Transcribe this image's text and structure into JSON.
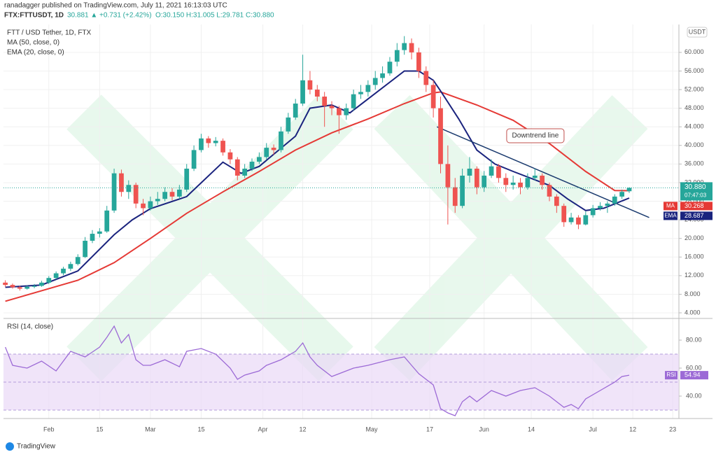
{
  "header": {
    "publisher": "ranadagger published on TradingView.com, July 11, 2021 16:13:03 UTC",
    "symbol": "FTX:FTTUSDT, 1D",
    "change": "30.881 ▲ +0.731 (+2.42%)",
    "ohlc": "O:30.150 H:31.005 L:29.781 C:30.880"
  },
  "legend": [
    "FTT / USD Tether, 1D, FTX",
    "MA (50, close, 0)",
    "EMA (20, close, 0)"
  ],
  "currency": "USDT",
  "footer": "TradingView",
  "chart_data": {
    "type": "candlestick",
    "xlim": [
      19.5,
      205.7
    ],
    "xticks": [
      {
        "value": 32,
        "label": "Feb"
      },
      {
        "value": 46,
        "label": "15"
      },
      {
        "value": 60,
        "label": "Mar"
      },
      {
        "value": 74,
        "label": "15"
      },
      {
        "value": 91,
        "label": "Apr"
      },
      {
        "value": 102,
        "label": "12"
      },
      {
        "value": 121,
        "label": "May"
      },
      {
        "value": 137,
        "label": "17"
      },
      {
        "value": 152,
        "label": "Jun"
      },
      {
        "value": 165,
        "label": "14"
      },
      {
        "value": 182,
        "label": "Jul"
      },
      {
        "value": 193,
        "label": "12"
      },
      {
        "value": 204,
        "label": "23"
      }
    ],
    "ylim": [
      2.8,
      66
    ],
    "yticks": [
      {
        "value": 4,
        "label": "4.000"
      },
      {
        "value": 8,
        "label": "8.000"
      },
      {
        "value": 12,
        "label": "12.000"
      },
      {
        "value": 16,
        "label": "16.000"
      },
      {
        "value": 20,
        "label": "20.000"
      },
      {
        "value": 24,
        "label": "24.000"
      },
      {
        "value": 28,
        "label": "28.000"
      },
      {
        "value": 32,
        "label": "32.000"
      },
      {
        "value": 36,
        "label": "36.000"
      },
      {
        "value": 40,
        "label": "40.000"
      },
      {
        "value": 44,
        "label": "44.000"
      },
      {
        "value": 48,
        "label": "48.000"
      },
      {
        "value": 52,
        "label": "52.000"
      },
      {
        "value": 56,
        "label": "56.000"
      },
      {
        "value": 60,
        "label": "60.000"
      }
    ],
    "grid": true,
    "up_color": "#26a69a",
    "down_color": "#ef5350",
    "x": [
      20,
      22,
      24,
      26,
      28,
      30,
      32,
      34,
      36,
      38,
      40,
      42,
      44,
      46,
      48,
      50,
      52,
      54,
      56,
      58,
      60,
      62,
      64,
      66,
      68,
      70,
      72,
      74,
      76,
      78,
      80,
      82,
      84,
      86,
      88,
      90,
      92,
      94,
      96,
      98,
      100,
      102,
      104,
      106,
      108,
      110,
      112,
      114,
      116,
      118,
      120,
      122,
      124,
      126,
      128,
      130,
      132,
      134,
      136,
      138,
      140,
      142,
      144,
      146,
      148,
      150,
      152,
      154,
      156,
      158,
      160,
      162,
      164,
      166,
      168,
      170,
      172,
      174,
      176,
      178,
      180,
      182,
      184,
      186,
      188,
      190,
      192
    ],
    "candles": [
      [
        10.5,
        11.0,
        9.6,
        10.0
      ],
      [
        10.0,
        10.3,
        9.2,
        9.5
      ],
      [
        9.5,
        9.8,
        8.8,
        9.2
      ],
      [
        9.2,
        9.9,
        9.0,
        9.6
      ],
      [
        9.6,
        10.2,
        9.3,
        9.8
      ],
      [
        9.8,
        10.9,
        9.6,
        10.5
      ],
      [
        10.5,
        11.9,
        10.2,
        11.5
      ],
      [
        11.5,
        12.9,
        11.2,
        12.5
      ],
      [
        12.5,
        13.9,
        12.1,
        13.5
      ],
      [
        13.5,
        15.0,
        13.0,
        14.5
      ],
      [
        14.5,
        16.6,
        14.2,
        16.0
      ],
      [
        16.0,
        20.3,
        15.8,
        19.5
      ],
      [
        19.5,
        21.8,
        19.0,
        21.0
      ],
      [
        21.0,
        22.2,
        20.2,
        21.5
      ],
      [
        21.5,
        27.0,
        21.2,
        26.0
      ],
      [
        26.0,
        35.0,
        25.5,
        34.0
      ],
      [
        34.0,
        34.8,
        29.0,
        30.0
      ],
      [
        30.0,
        32.5,
        28.5,
        31.5
      ],
      [
        31.5,
        32.0,
        26.5,
        27.5
      ],
      [
        27.5,
        28.5,
        25.0,
        26.5
      ],
      [
        26.5,
        29.0,
        26.0,
        28.0
      ],
      [
        28.0,
        30.0,
        27.2,
        28.5
      ],
      [
        28.5,
        31.0,
        28.0,
        30.0
      ],
      [
        30.0,
        30.8,
        28.2,
        29.0
      ],
      [
        29.0,
        31.5,
        28.5,
        30.5
      ],
      [
        30.5,
        36.0,
        30.0,
        35.0
      ],
      [
        35.0,
        40.0,
        34.5,
        39.0
      ],
      [
        39.0,
        42.5,
        38.5,
        41.5
      ],
      [
        41.5,
        42.0,
        39.5,
        40.5
      ],
      [
        40.5,
        41.8,
        39.8,
        41.0
      ],
      [
        41.0,
        41.5,
        37.8,
        38.5
      ],
      [
        38.5,
        39.2,
        36.0,
        37.0
      ],
      [
        37.0,
        37.5,
        32.5,
        33.5
      ],
      [
        33.5,
        36.0,
        33.0,
        35.0
      ],
      [
        35.0,
        37.2,
        34.5,
        36.5
      ],
      [
        36.5,
        38.5,
        36.0,
        37.5
      ],
      [
        37.5,
        40.5,
        37.0,
        39.5
      ],
      [
        39.5,
        40.2,
        38.0,
        39.0
      ],
      [
        39.0,
        44.0,
        38.5,
        43.0
      ],
      [
        43.0,
        47.0,
        42.5,
        46.0
      ],
      [
        46.0,
        50.0,
        45.5,
        49.0
      ],
      [
        49.0,
        59.5,
        48.5,
        54.0
      ],
      [
        54.0,
        56.0,
        51.0,
        52.0
      ],
      [
        52.0,
        53.0,
        49.5,
        50.5
      ],
      [
        50.5,
        51.5,
        44.0,
        48.5
      ],
      [
        48.5,
        49.5,
        46.5,
        48.0
      ],
      [
        48.0,
        48.5,
        42.5,
        46.5
      ],
      [
        46.5,
        49.0,
        45.5,
        48.0
      ],
      [
        48.0,
        52.0,
        47.5,
        51.0
      ],
      [
        51.0,
        53.0,
        50.0,
        51.5
      ],
      [
        51.5,
        54.0,
        50.5,
        53.0
      ],
      [
        53.0,
        56.0,
        52.0,
        54.5
      ],
      [
        54.5,
        57.0,
        53.5,
        55.5
      ],
      [
        55.5,
        59.0,
        55.0,
        58.0
      ],
      [
        58.0,
        62.0,
        57.0,
        60.5
      ],
      [
        60.5,
        63.5,
        59.5,
        62.0
      ],
      [
        62.0,
        63.0,
        58.5,
        60.0
      ],
      [
        60.0,
        61.0,
        54.5,
        56.0
      ],
      [
        56.0,
        57.0,
        51.5,
        53.0
      ],
      [
        53.0,
        54.0,
        46.0,
        48.0
      ],
      [
        48.0,
        50.5,
        34.0,
        36.0
      ],
      [
        36.0,
        40.0,
        23.0,
        31.0
      ],
      [
        31.0,
        33.0,
        25.5,
        27.0
      ],
      [
        27.0,
        35.0,
        26.5,
        33.5
      ],
      [
        33.5,
        37.5,
        32.0,
        35.0
      ],
      [
        35.0,
        35.5,
        29.5,
        31.0
      ],
      [
        31.0,
        34.5,
        30.0,
        33.5
      ],
      [
        33.5,
        37.0,
        33.0,
        35.5
      ],
      [
        35.5,
        36.0,
        32.0,
        33.0
      ],
      [
        33.0,
        34.0,
        30.0,
        31.5
      ],
      [
        31.5,
        33.5,
        30.5,
        32.0
      ],
      [
        32.0,
        33.0,
        29.5,
        31.0
      ],
      [
        31.0,
        34.0,
        30.5,
        33.0
      ],
      [
        33.0,
        35.0,
        32.5,
        33.5
      ],
      [
        33.5,
        34.0,
        30.5,
        31.5
      ],
      [
        31.5,
        32.0,
        28.0,
        29.0
      ],
      [
        29.0,
        29.5,
        25.5,
        27.0
      ],
      [
        27.0,
        27.5,
        22.5,
        23.5
      ],
      [
        23.5,
        25.5,
        23.0,
        24.5
      ],
      [
        24.5,
        25.0,
        22.0,
        23.0
      ],
      [
        23.0,
        25.8,
        22.8,
        25.0
      ],
      [
        25.0,
        27.2,
        24.5,
        26.5
      ],
      [
        26.5,
        27.8,
        26.0,
        27.0
      ],
      [
        27.0,
        28.0,
        25.5,
        27.5
      ],
      [
        27.5,
        29.5,
        27.0,
        29.0
      ],
      [
        29.0,
        30.5,
        28.5,
        30.0
      ],
      [
        30.15,
        31.005,
        29.781,
        30.88
      ]
    ],
    "last_label": "30.880",
    "countdown": "07:47:03",
    "series": [
      {
        "name": "MA",
        "color": "#e53935",
        "label": "30.268",
        "x": [
          20,
          40,
          50,
          60,
          70,
          80,
          90,
          100,
          110,
          120,
          130,
          138,
          140,
          150,
          160,
          170,
          180,
          188,
          192
        ],
        "values": [
          6.5,
          11,
          14.8,
          20,
          25.4,
          30,
          34.4,
          39,
          42.7,
          45.7,
          49,
          51.3,
          51.5,
          48.7,
          45.4,
          40.4,
          34.4,
          30.3,
          30.268
        ]
      },
      {
        "name": "EMA",
        "color": "#1a237e",
        "label": "28.687",
        "x": [
          20,
          30,
          40,
          50,
          55,
          60,
          70,
          80,
          85,
          90,
          100,
          104,
          110,
          115,
          120,
          130,
          134,
          138,
          140,
          145,
          150,
          155,
          160,
          170,
          175,
          180,
          185,
          192
        ],
        "values": [
          9.5,
          10,
          13,
          20.8,
          24,
          26.4,
          29,
          36.4,
          34,
          35.5,
          42,
          48,
          48.7,
          47,
          50,
          56,
          56,
          54,
          51.7,
          45.7,
          39,
          36,
          34.4,
          31.4,
          28.5,
          26,
          26.5,
          28.687
        ]
      }
    ],
    "trendline": {
      "label": "Downtrend line",
      "color": "#1a3a6e",
      "x": [
        139,
        197.5
      ],
      "values": [
        44,
        24.5
      ]
    },
    "rsi": {
      "title": "RSI (14, close)",
      "name": "RSI",
      "color": "#9c6ad6",
      "label": "54.94",
      "ylim": [
        24,
        95.5
      ],
      "yticks": [
        {
          "value": 40,
          "label": "40.00"
        },
        {
          "value": 60,
          "label": "60.00"
        },
        {
          "value": 80,
          "label": "80.00"
        }
      ],
      "band": [
        30,
        70
      ],
      "mid": 50,
      "x": [
        20,
        22,
        26,
        30,
        34,
        38,
        42,
        46,
        48,
        50,
        52,
        54,
        56,
        58,
        60,
        64,
        68,
        70,
        74,
        78,
        82,
        84,
        86,
        90,
        92,
        96,
        100,
        102,
        104,
        106,
        110,
        112,
        116,
        120,
        126,
        130,
        132,
        134,
        138,
        140,
        142,
        144,
        146,
        148,
        150,
        154,
        158,
        162,
        166,
        170,
        174,
        176,
        178,
        180,
        184,
        188,
        190,
        192
      ],
      "values": [
        75,
        62,
        60,
        65,
        58,
        72,
        68,
        75,
        82,
        90,
        78,
        84,
        66,
        62,
        62,
        66,
        61,
        72,
        74,
        70,
        60,
        52,
        55,
        58,
        62,
        66,
        72,
        78,
        68,
        62,
        54,
        56,
        60,
        62,
        66,
        68,
        62,
        56,
        48,
        31,
        28,
        26,
        36,
        40,
        36,
        44,
        40,
        44,
        46,
        40,
        32,
        34,
        31,
        38,
        44,
        50,
        54,
        54.94
      ]
    }
  }
}
